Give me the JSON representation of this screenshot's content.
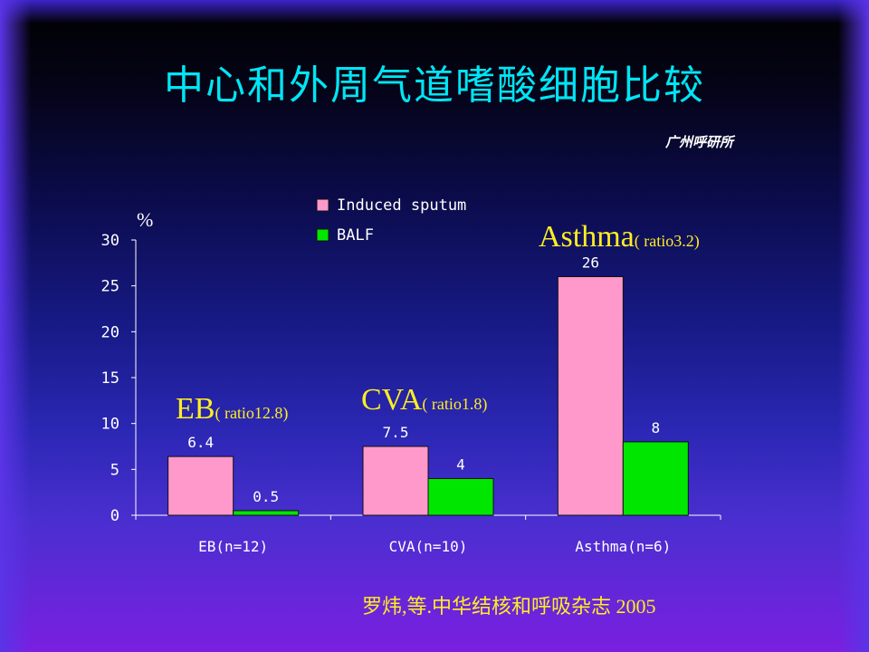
{
  "slide": {
    "title": "中心和外周气道嗜酸细胞比较",
    "source": "广州呼研所",
    "citation": "罗炜,等.中华结核和呼吸杂志 2005"
  },
  "chart_data": {
    "type": "bar",
    "unit_label": "%",
    "categories": [
      "EB(n=12)",
      "CVA(n=10)",
      "Asthma(n=6)"
    ],
    "series": [
      {
        "name": "Induced sputum",
        "values": [
          6.4,
          7.5,
          26
        ],
        "labels": [
          "6.4",
          "7.5",
          "26"
        ],
        "color": "#ff99cc"
      },
      {
        "name": "BALF",
        "values": [
          0.5,
          4,
          8
        ],
        "labels": [
          "0.5",
          "4",
          "8"
        ],
        "color": "#00e600"
      }
    ],
    "ylim": [
      0,
      30
    ],
    "yticks": [
      0,
      5,
      10,
      15,
      20,
      25,
      30
    ],
    "grid": false,
    "legend_position": "top-center",
    "annotations": [
      {
        "group": "EB",
        "text": "EB",
        "ratio_text": "( ratio12.8)"
      },
      {
        "group": "CVA",
        "text": "CVA",
        "ratio_text": "( ratio1.8)"
      },
      {
        "group": "Asthma",
        "text": "Asthma",
        "ratio_text": "( ratio3.2)"
      }
    ]
  }
}
